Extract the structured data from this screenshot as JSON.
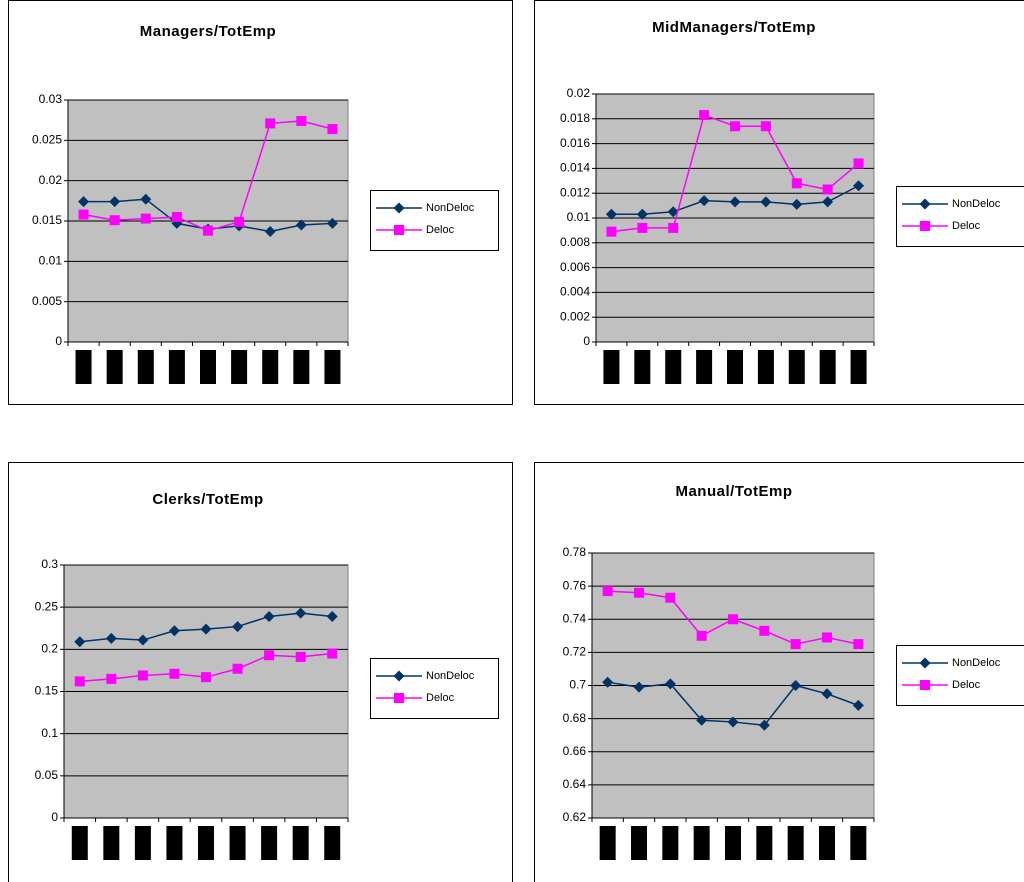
{
  "chart_data": [
    {
      "type": "line",
      "title": "Managers/TotEmp",
      "categories": [
        null,
        null,
        null,
        null,
        null,
        null,
        null,
        null,
        null
      ],
      "series": [
        {
          "name": "NonDeloc",
          "color": "#003366",
          "marker": "diamond",
          "values": [
            0.0174,
            0.0174,
            0.0177,
            0.0147,
            0.014,
            0.0144,
            0.0137,
            0.0145,
            0.0147
          ]
        },
        {
          "name": "Deloc",
          "color": "#ff00ff",
          "marker": "square",
          "values": [
            0.0158,
            0.0151,
            0.0153,
            0.0155,
            0.0138,
            0.0149,
            0.0271,
            0.0274,
            0.0264
          ]
        }
      ],
      "ylim": [
        0,
        0.03
      ],
      "yticks": [
        0,
        0.005,
        0.01,
        0.015,
        0.02,
        0.025,
        0.03
      ],
      "grid": true,
      "legend": "right"
    },
    {
      "type": "line",
      "title": "MidManagers/TotEmp",
      "categories": [
        null,
        null,
        null,
        null,
        null,
        null,
        null,
        null,
        null
      ],
      "series": [
        {
          "name": "NonDeloc",
          "color": "#003366",
          "marker": "diamond",
          "values": [
            0.0103,
            0.0103,
            0.0105,
            0.0114,
            0.0113,
            0.0113,
            0.0111,
            0.0113,
            0.0126
          ]
        },
        {
          "name": "Deloc",
          "color": "#ff00ff",
          "marker": "square",
          "values": [
            0.0089,
            0.0092,
            0.0092,
            0.0183,
            0.0174,
            0.0174,
            0.0128,
            0.0123,
            0.0144
          ]
        }
      ],
      "ylim": [
        0,
        0.02
      ],
      "yticks": [
        0,
        0.002,
        0.004,
        0.006,
        0.008,
        0.01,
        0.012,
        0.014,
        0.016,
        0.018,
        0.02
      ],
      "grid": true,
      "legend": "right"
    },
    {
      "type": "line",
      "title": "Clerks/TotEmp",
      "categories": [
        null,
        null,
        null,
        null,
        null,
        null,
        null,
        null,
        null
      ],
      "series": [
        {
          "name": "NonDeloc",
          "color": "#003366",
          "marker": "diamond",
          "values": [
            0.209,
            0.213,
            0.211,
            0.222,
            0.224,
            0.227,
            0.239,
            0.243,
            0.239
          ]
        },
        {
          "name": "Deloc",
          "color": "#ff00ff",
          "marker": "square",
          "values": [
            0.162,
            0.165,
            0.169,
            0.171,
            0.167,
            0.177,
            0.193,
            0.191,
            0.195
          ]
        }
      ],
      "ylim": [
        0,
        0.3
      ],
      "yticks": [
        0,
        0.05,
        0.1,
        0.15,
        0.2,
        0.25,
        0.3
      ],
      "grid": true,
      "legend": "right"
    },
    {
      "type": "line",
      "title": "Manual/TotEmp",
      "categories": [
        null,
        null,
        null,
        null,
        null,
        null,
        null,
        null,
        null
      ],
      "series": [
        {
          "name": "NonDeloc",
          "color": "#003366",
          "marker": "diamond",
          "values": [
            0.702,
            0.699,
            0.701,
            0.679,
            0.678,
            0.676,
            0.7,
            0.695,
            0.688
          ]
        },
        {
          "name": "Deloc",
          "color": "#ff00ff",
          "marker": "square",
          "values": [
            0.757,
            0.756,
            0.753,
            0.73,
            0.74,
            0.733,
            0.725,
            0.729,
            0.725
          ]
        }
      ],
      "ylim": [
        0.62,
        0.78
      ],
      "yticks": [
        0.62,
        0.64,
        0.66,
        0.68,
        0.7,
        0.72,
        0.74,
        0.76,
        0.78
      ],
      "grid": true,
      "legend": "right"
    }
  ]
}
